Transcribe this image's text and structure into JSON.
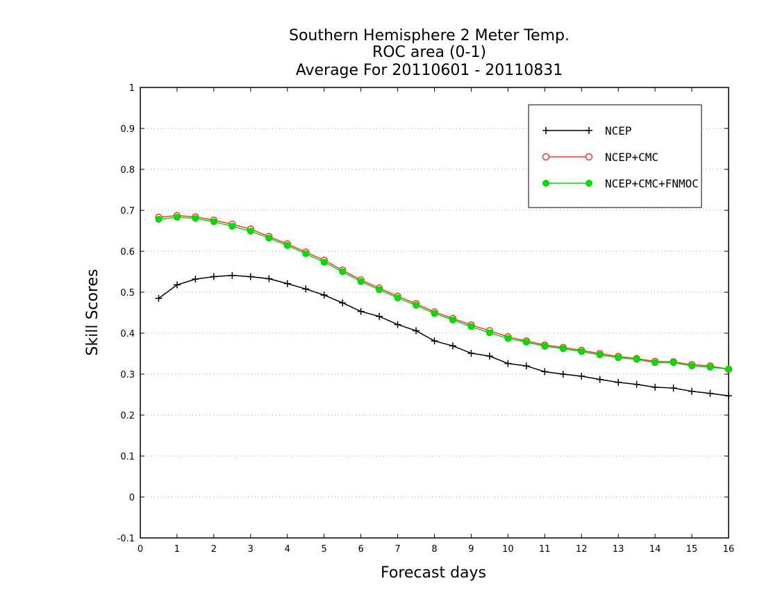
{
  "chart_data": {
    "type": "line",
    "title_lines": [
      "Southern Hemisphere 2 Meter Temp.",
      "ROC area (0-1)",
      "Average For 20110601 - 20110831"
    ],
    "xlabel": "Forecast days",
    "ylabel": "Skill Scores",
    "xlim": [
      0,
      16
    ],
    "ylim": [
      -0.1,
      1
    ],
    "xticks": [
      "0",
      "1",
      "2",
      "3",
      "4",
      "5",
      "6",
      "7",
      "8",
      "9",
      "10",
      "11",
      "12",
      "13",
      "14",
      "15",
      "16"
    ],
    "yticks": [
      "-0.1",
      "0",
      "0.1",
      "0.2",
      "0.3",
      "0.4",
      "0.5",
      "0.6",
      "0.7",
      "0.8",
      "0.9",
      "1"
    ],
    "grid": true,
    "legend_position": "top-right",
    "x": [
      0.5,
      1,
      1.5,
      2,
      2.5,
      3,
      3.5,
      4,
      4.5,
      5,
      5.5,
      6,
      6.5,
      7,
      7.5,
      8,
      8.5,
      9,
      9.5,
      10,
      10.5,
      11,
      11.5,
      12,
      12.5,
      13,
      13.5,
      14,
      14.5,
      15,
      15.5,
      16
    ],
    "series": [
      {
        "name": "NCEP",
        "color": "#000000",
        "marker": "plus",
        "values": [
          0.485,
          0.518,
          0.532,
          0.538,
          0.541,
          0.538,
          0.533,
          0.521,
          0.508,
          0.493,
          0.474,
          0.453,
          0.441,
          0.421,
          0.406,
          0.381,
          0.369,
          0.351,
          0.344,
          0.326,
          0.32,
          0.306,
          0.3,
          0.295,
          0.287,
          0.28,
          0.275,
          0.268,
          0.266,
          0.258,
          0.253,
          0.247
        ]
      },
      {
        "name": "NCEP+CMC",
        "color": "#ff3030",
        "marker": "open-circle",
        "values": [
          0.683,
          0.687,
          0.684,
          0.676,
          0.666,
          0.654,
          0.636,
          0.618,
          0.598,
          0.578,
          0.554,
          0.53,
          0.51,
          0.49,
          0.472,
          0.452,
          0.436,
          0.42,
          0.406,
          0.391,
          0.381,
          0.371,
          0.365,
          0.358,
          0.35,
          0.343,
          0.338,
          0.331,
          0.33,
          0.323,
          0.32,
          0.312
        ]
      },
      {
        "name": "NCEP+CMC+FNMOC",
        "color": "#00dd00",
        "marker": "filled-circle",
        "values": [
          0.678,
          0.683,
          0.68,
          0.672,
          0.661,
          0.649,
          0.632,
          0.614,
          0.594,
          0.573,
          0.55,
          0.526,
          0.506,
          0.486,
          0.468,
          0.448,
          0.432,
          0.416,
          0.401,
          0.387,
          0.378,
          0.368,
          0.362,
          0.355,
          0.347,
          0.34,
          0.336,
          0.328,
          0.328,
          0.32,
          0.317,
          0.312
        ]
      }
    ]
  }
}
